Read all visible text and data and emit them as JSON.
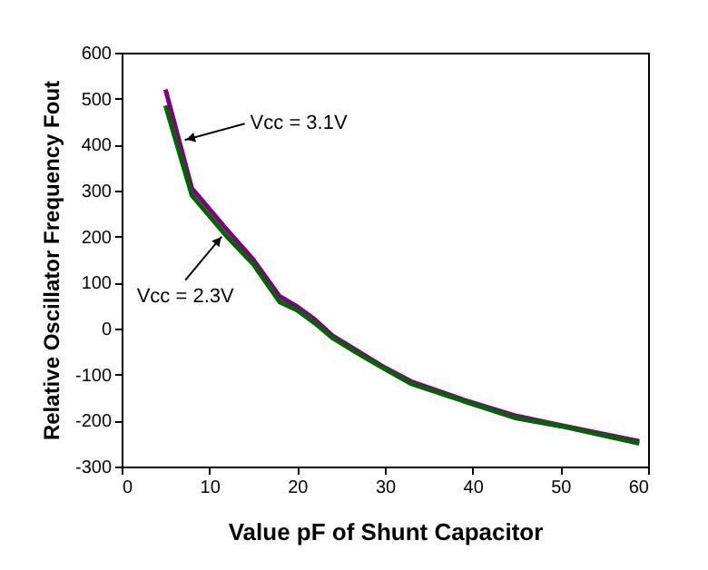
{
  "chart_data": {
    "type": "line",
    "xlabel": "Value pF of Shunt Capacitor",
    "ylabel": "Relative Oscillator Frequency Fout",
    "x": [
      5,
      8,
      12,
      15,
      18,
      20,
      22,
      24,
      27,
      30,
      33,
      39,
      45,
      50,
      59
    ],
    "series": [
      {
        "color": "#800080",
        "values": [
          520,
          305,
          215,
          150,
          70,
          48,
          20,
          -15,
          -50,
          -85,
          -115,
          -155,
          -190,
          -210,
          -245
        ]
      },
      {
        "color": "#006400",
        "values": [
          485,
          290,
          200,
          140,
          58,
          40,
          12,
          -20,
          -55,
          -88,
          -120,
          -158,
          -195,
          -212,
          -250
        ]
      }
    ],
    "xlim": [
      0,
      60
    ],
    "xticks": [
      0,
      10,
      20,
      30,
      40,
      50,
      60
    ],
    "ylim": [
      -300,
      600
    ],
    "yticks": [
      -300,
      -200,
      -100,
      0,
      100,
      200,
      300,
      400,
      500,
      600
    ],
    "grid": false,
    "marker": "none",
    "line_style": "solid",
    "annotations": [
      {
        "text": "Vcc = 3.1V",
        "x": 7.2,
        "y": 410
      },
      {
        "text": "Vcc = 2.3V",
        "x": 11.4,
        "y": 200
      }
    ]
  }
}
